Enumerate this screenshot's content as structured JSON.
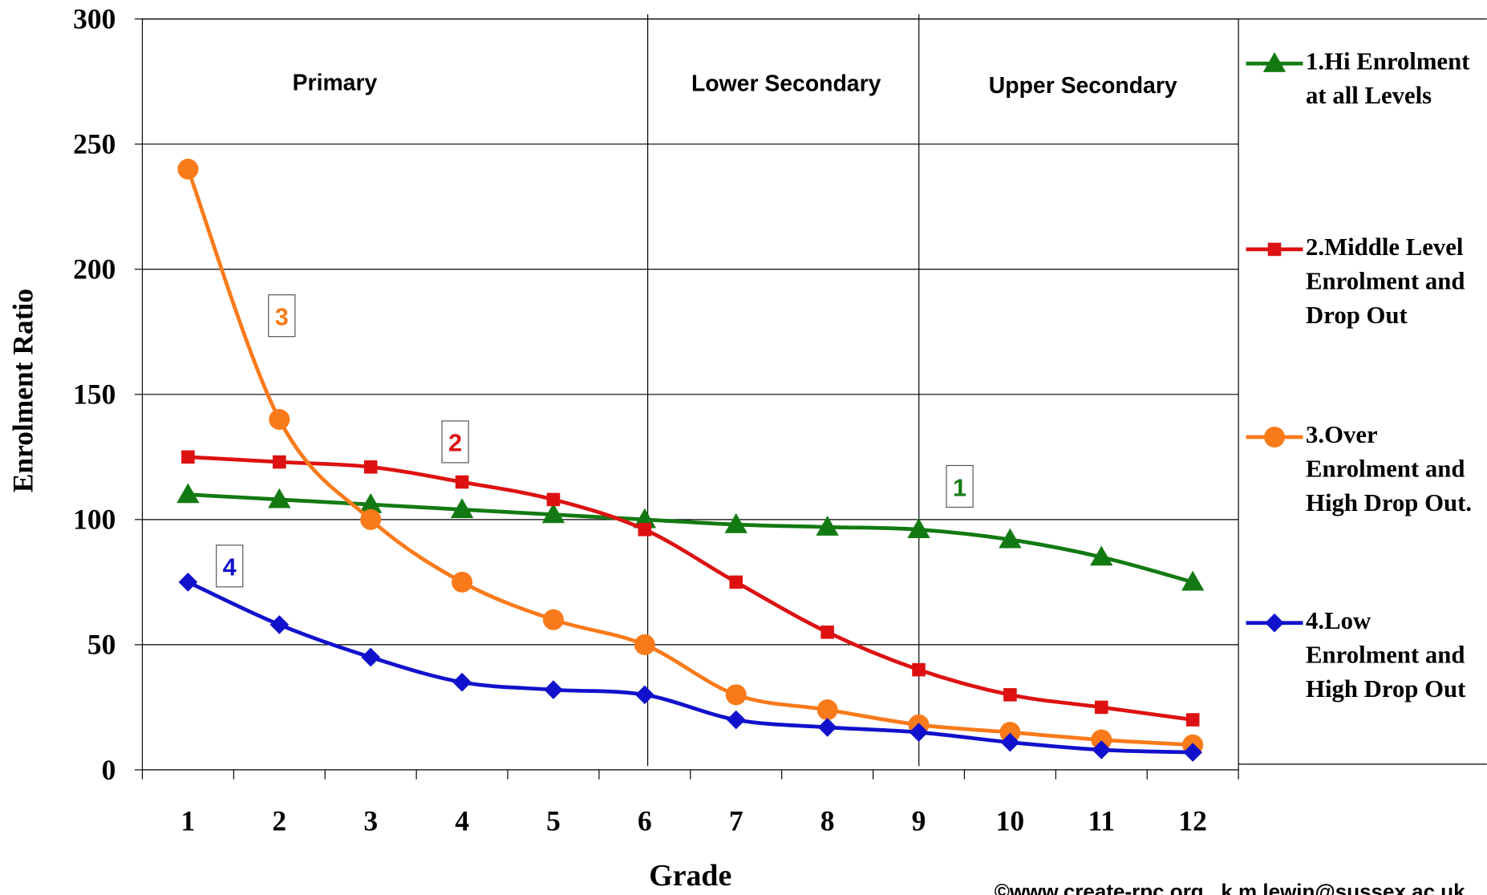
{
  "chart_data": {
    "type": "line",
    "xlabel": "Grade",
    "ylabel": "Enrolment Ratio",
    "categories": [
      "1",
      "2",
      "3",
      "4",
      "5",
      "6",
      "7",
      "8",
      "9",
      "10",
      "11",
      "12"
    ],
    "ylim": [
      0,
      300
    ],
    "yticks": [
      0,
      50,
      100,
      150,
      200,
      250,
      300
    ],
    "grid": true,
    "sections": [
      "Primary",
      "Lower Secondary",
      "Upper Secondary"
    ],
    "series": [
      {
        "name": "1.Hi Enrolment at all Levels",
        "color": "#137a13",
        "marker": "triangle",
        "values": [
          110,
          108,
          106,
          104,
          102,
          100,
          98,
          97,
          96,
          92,
          85,
          75
        ]
      },
      {
        "name": "2.Middle Level Enrolment and Drop Out",
        "color": "#dd1111",
        "marker": "square",
        "values": [
          125,
          123,
          121,
          115,
          108,
          96,
          75,
          55,
          40,
          30,
          25,
          20
        ]
      },
      {
        "name": "3.Over Enrolment and High Drop Out.",
        "color": "#f97a1a",
        "marker": "circle",
        "values": [
          240,
          140,
          100,
          75,
          60,
          50,
          30,
          24,
          18,
          15,
          12,
          10
        ]
      },
      {
        "name": "4.Low Enrolment and High Drop Out",
        "color": "#1111cc",
        "marker": "diamond",
        "values": [
          75,
          58,
          45,
          35,
          32,
          30,
          20,
          17,
          15,
          11,
          8,
          7
        ]
      }
    ],
    "annotations": [
      "1",
      "2",
      "3",
      "4"
    ],
    "credit": "©www.create-rpc.org , k.m.lewin@sussex.ac.uk"
  }
}
